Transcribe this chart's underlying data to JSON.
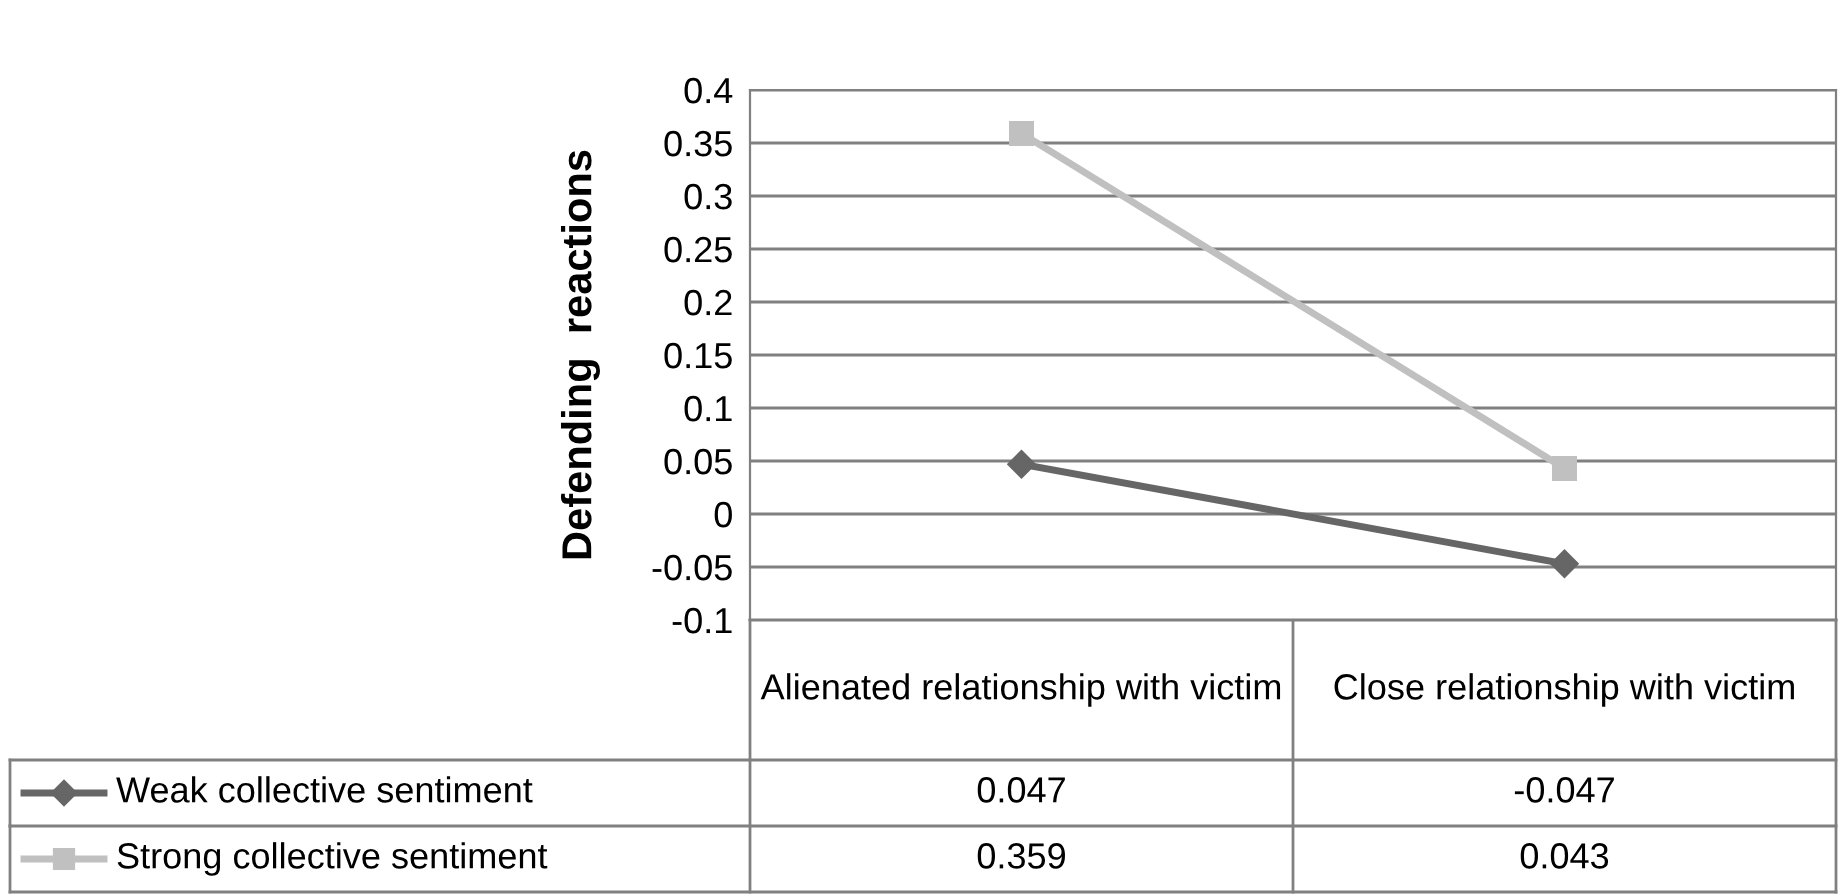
{
  "chart_data": {
    "type": "line",
    "ylabel": "Defending  reactions",
    "categories": [
      "Alienated relationship with victim",
      "Close relationship with victim"
    ],
    "series": [
      {
        "name": "Weak collective sentiment",
        "color": "#666666",
        "marker": "diamond",
        "values": [
          0.047,
          -0.047
        ]
      },
      {
        "name": "Strong collective sentiment",
        "color": "#c0c0c0",
        "marker": "square",
        "values": [
          0.359,
          0.043
        ]
      }
    ],
    "ylim": [
      -0.1,
      0.4
    ],
    "yticks": [
      -0.1,
      -0.05,
      0,
      0.05,
      0.1,
      0.15,
      0.2,
      0.25,
      0.3,
      0.35,
      0.4
    ],
    "grid": "y",
    "legend": "bottom left",
    "data_labels": true
  }
}
